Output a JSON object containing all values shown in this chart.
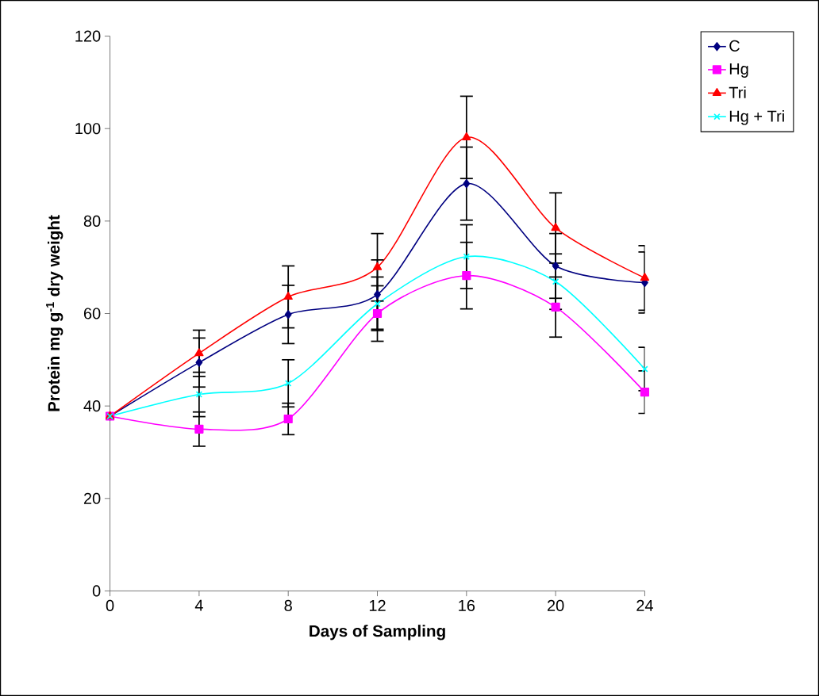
{
  "chart_data": {
    "type": "line",
    "xlabel": "Days of Sampling",
    "ylabel": "Protein mg g$^{-1}$ dry weight",
    "x": [
      0,
      4,
      8,
      12,
      16,
      20,
      24
    ],
    "xlim": [
      0,
      24
    ],
    "xticks": [
      0,
      4,
      8,
      12,
      16,
      20,
      24
    ],
    "ylim": [
      0,
      120
    ],
    "yticks": [
      0,
      20,
      40,
      60,
      80,
      100,
      120
    ],
    "grid": false,
    "legend": "top right",
    "series": [
      {
        "name": "C",
        "color": "#000080",
        "marker": "diamond",
        "values": [
          37.8,
          49.4,
          59.8,
          64.1,
          88.1,
          70.3,
          66.7
        ],
        "errors": [
          null,
          5.3,
          6.3,
          7.5,
          7.9,
          7.0,
          6.6
        ]
      },
      {
        "name": "Hg",
        "color": "#ff00ff",
        "marker": "square",
        "values": [
          37.8,
          35.0,
          37.2,
          60.0,
          68.2,
          61.4,
          43.0
        ],
        "errors": [
          null,
          3.7,
          3.4,
          6.0,
          7.2,
          6.5,
          4.6
        ]
      },
      {
        "name": "Tri",
        "color": "#ff0000",
        "marker": "triangle",
        "values": [
          37.8,
          51.4,
          63.6,
          70.0,
          98.1,
          78.5,
          67.7
        ],
        "errors": [
          null,
          5.0,
          6.7,
          7.3,
          8.9,
          7.6,
          7.0
        ]
      },
      {
        "name": "Hg + Tri",
        "color": "#00ffff",
        "marker": "cross",
        "values": [
          37.8,
          42.5,
          44.9,
          62.1,
          72.3,
          66.9,
          48.0
        ],
        "errors": [
          null,
          4.8,
          5.1,
          5.8,
          6.9,
          6.0,
          4.7
        ]
      }
    ]
  }
}
